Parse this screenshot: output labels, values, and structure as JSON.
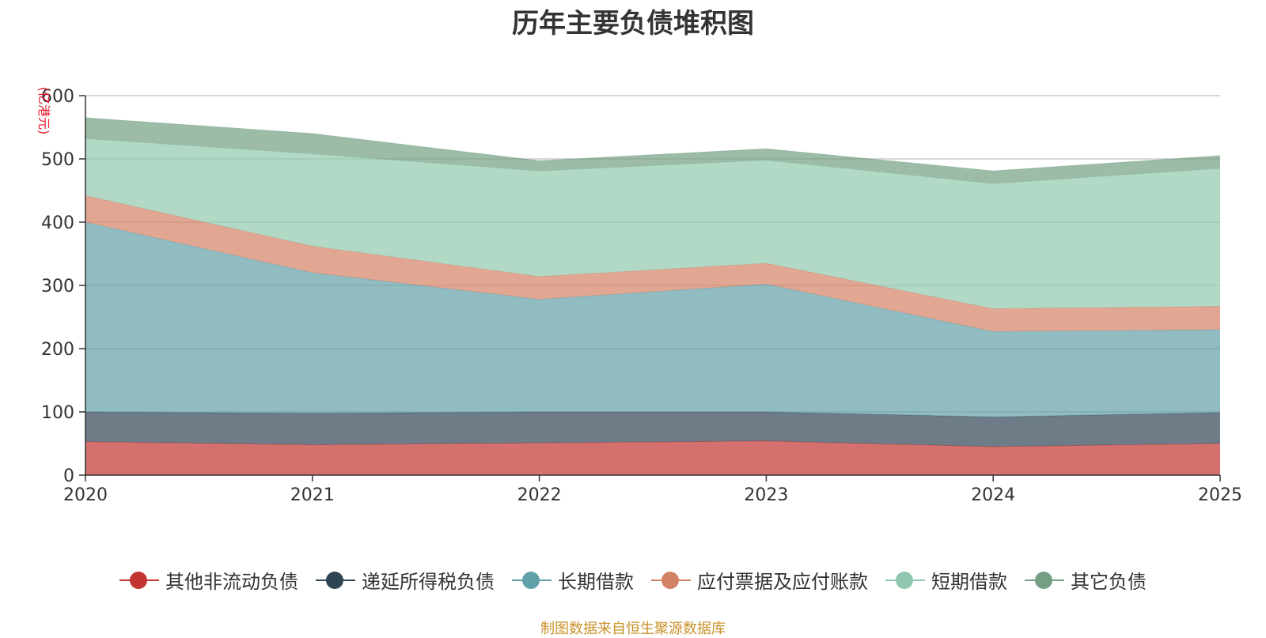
{
  "chart_data": {
    "type": "area",
    "stacked": true,
    "title": "历年主要负债堆积图",
    "ylabel": "(亿港元)",
    "xlabel": "",
    "categories": [
      "2020",
      "2021",
      "2022",
      "2023",
      "2024",
      "2025"
    ],
    "ylim": [
      0,
      600
    ],
    "yticks": [
      0,
      100,
      200,
      300,
      400,
      500,
      600
    ],
    "grid": true,
    "legend_position": "bottom",
    "series": [
      {
        "name": "其他非流动负债",
        "color": "#c23531",
        "values": [
          53,
          48,
          51,
          54,
          45,
          50
        ]
      },
      {
        "name": "递延所得税负债",
        "color": "#2f4554",
        "values": [
          47,
          50,
          49,
          46,
          47,
          49
        ]
      },
      {
        "name": "长期借款",
        "color": "#61a0a8",
        "values": [
          300,
          222,
          178,
          202,
          135,
          131
        ]
      },
      {
        "name": "应付票据及应付账款",
        "color": "#d48265",
        "values": [
          42,
          42,
          36,
          33,
          36,
          37
        ]
      },
      {
        "name": "短期借款",
        "color": "#91c7ae",
        "values": [
          90,
          146,
          167,
          163,
          198,
          218
        ]
      },
      {
        "name": "其它负债",
        "color": "#749f83",
        "values": [
          33,
          32,
          16,
          18,
          20,
          20
        ]
      }
    ]
  },
  "source_note": "制图数据来自恒生聚源数据库"
}
